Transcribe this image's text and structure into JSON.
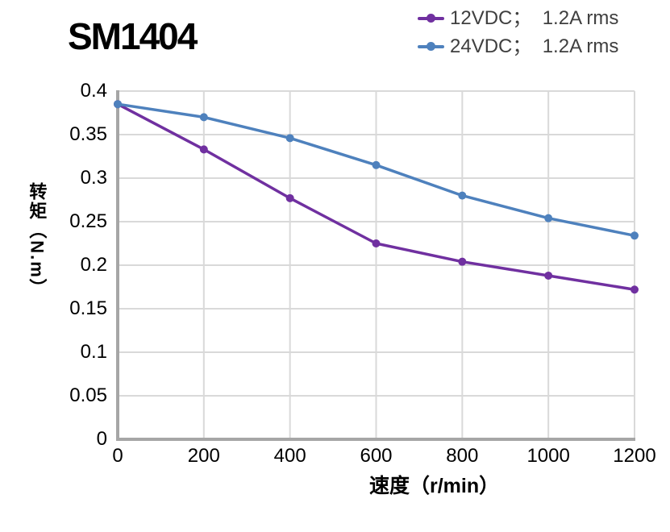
{
  "title": "SM1404",
  "legend": {
    "items": [
      {
        "label": "12VDC；  1.2A rms",
        "color": "#7030A0"
      },
      {
        "label": "24VDC；  1.2A rms",
        "color": "#4E81BD"
      }
    ]
  },
  "axes": {
    "x_label": "速度（r/min）",
    "y_label": "转矩（N.m）"
  },
  "chart_data": {
    "type": "line",
    "title": "SM1404",
    "x": [
      0,
      200,
      400,
      600,
      800,
      1000,
      1200
    ],
    "series": [
      {
        "name": "12VDC；  1.2A rms",
        "color": "#7030A0",
        "marker": "circle",
        "values": [
          0.385,
          0.333,
          0.277,
          0.225,
          0.204,
          0.188,
          0.172
        ]
      },
      {
        "name": "24VDC；  1.2A rms",
        "color": "#4E81BD",
        "marker": "circle",
        "values": [
          0.385,
          0.37,
          0.346,
          0.315,
          0.28,
          0.254,
          0.234
        ]
      }
    ],
    "xlabel": "速度（r/min）",
    "ylabel": "转矩（N.m）",
    "xlim": [
      0,
      1200
    ],
    "ylim": [
      0,
      0.4
    ],
    "x_ticks": [
      0,
      200,
      400,
      600,
      800,
      1000,
      1200
    ],
    "y_ticks": [
      0,
      0.05,
      0.1,
      0.15,
      0.2,
      0.25,
      0.3,
      0.35,
      0.4
    ],
    "grid": true,
    "legend_position": "top-right"
  },
  "style": {
    "grid_color": "#D9D9D9",
    "axis_color": "#A6A6A6",
    "text_color": "#000000",
    "legend_text_color": "#3F3F3F",
    "background": "#FFFFFF"
  }
}
